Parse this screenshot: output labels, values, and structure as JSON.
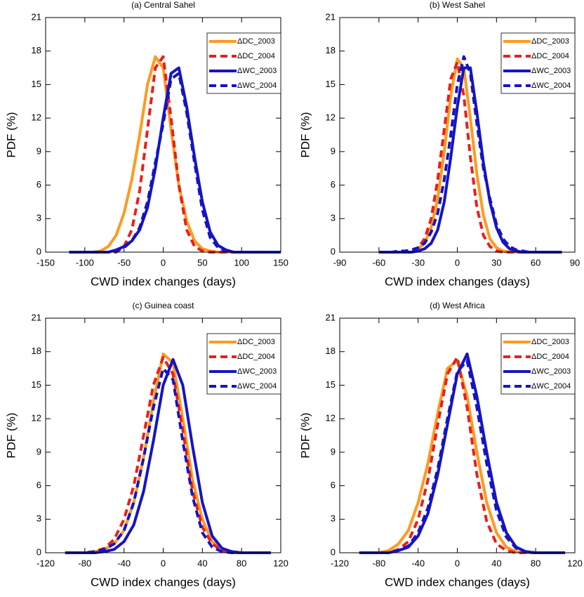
{
  "chart_data": [
    {
      "type": "line",
      "title": "(a) Central Sahel",
      "xlabel": "CWD index changes (days)",
      "ylabel": "PDF (%)",
      "x": [
        -120,
        -110,
        -100,
        -90,
        -80,
        -70,
        -60,
        -50,
        -40,
        -30,
        -20,
        -10,
        0,
        10,
        20,
        30,
        40,
        50,
        60,
        70,
        80,
        90,
        100,
        110,
        120,
        130,
        140,
        150
      ],
      "series": [
        {
          "name": "ΔDC_2003",
          "color": "#ff9a1f",
          "dashed": false,
          "values": [
            0,
            0,
            0,
            0,
            0.1,
            0.5,
            1.5,
            3.5,
            6.5,
            10.5,
            15,
            17.5,
            16.5,
            11,
            6,
            2.8,
            1,
            0.3,
            0.1,
            0,
            0,
            0,
            0,
            0,
            0,
            0,
            0,
            0
          ]
        },
        {
          "name": "ΔDC_2004",
          "color": "#e8201c",
          "dashed": true,
          "values": [
            0,
            0,
            0,
            0,
            0,
            0,
            0,
            0.5,
            2,
            5.5,
            11,
            16.5,
            17.5,
            12,
            6,
            2,
            0.5,
            0.1,
            0,
            0,
            0,
            0,
            0,
            0,
            0,
            0,
            0,
            0
          ]
        },
        {
          "name": "ΔWC_2003",
          "color": "#1414c4",
          "dashed": false,
          "values": [
            0,
            0,
            0,
            0,
            0,
            0,
            0.2,
            0.5,
            1,
            2,
            4,
            7.5,
            12,
            16,
            16.5,
            13,
            8.5,
            4.5,
            1.8,
            0.6,
            0.2,
            0,
            0,
            0,
            0,
            0,
            0,
            0
          ]
        },
        {
          "name": "ΔWC_2004",
          "color": "#1414c4",
          "dashed": true,
          "values": [
            0,
            0,
            0,
            0,
            0,
            0,
            0.1,
            0.4,
            1,
            2.2,
            4.5,
            8,
            11.5,
            15.5,
            16,
            12.5,
            8,
            3.8,
            1.3,
            0.4,
            0.1,
            0,
            0,
            0,
            0,
            0,
            0,
            0
          ]
        }
      ],
      "xlim": [
        -150,
        150
      ],
      "xticks": [
        -150,
        -100,
        -50,
        0,
        50,
        100,
        150
      ],
      "ylim": [
        0,
        21
      ],
      "yticks": [
        0,
        3,
        6,
        9,
        12,
        15,
        18,
        21
      ],
      "legend": "upper right"
    },
    {
      "type": "line",
      "title": "(b) West Sahel",
      "xlabel": "CWD index changes (days)",
      "ylabel": "PDF (%)",
      "x": [
        -60,
        -55,
        -50,
        -45,
        -40,
        -35,
        -30,
        -25,
        -20,
        -15,
        -10,
        -5,
        0,
        5,
        10,
        15,
        20,
        25,
        30,
        35,
        40,
        45,
        50,
        55,
        60,
        65,
        70,
        75,
        80
      ],
      "series": [
        {
          "name": "ΔDC_2003",
          "color": "#ff9a1f",
          "dashed": false,
          "values": [
            0,
            0,
            0,
            0,
            0,
            0,
            0.3,
            0.8,
            2.2,
            4.8,
            9,
            14,
            17.3,
            16.5,
            12,
            7,
            3.3,
            1.2,
            0.4,
            0.1,
            0,
            0,
            0,
            0,
            0,
            0,
            0,
            0,
            0
          ]
        },
        {
          "name": "ΔDC_2004",
          "color": "#e8201c",
          "dashed": true,
          "values": [
            0,
            0,
            0,
            0,
            0,
            0,
            0.4,
            1.2,
            3,
            6.5,
            11,
            15.5,
            17,
            14,
            8.5,
            4,
            1.5,
            0.5,
            0.1,
            0,
            0,
            0,
            0,
            0,
            0,
            0,
            0,
            0,
            0
          ]
        },
        {
          "name": "ΔWC_2003",
          "color": "#1414c4",
          "dashed": false,
          "values": [
            0,
            0,
            0,
            0,
            0,
            0,
            0.1,
            0.3,
            0.8,
            2,
            4.5,
            8.5,
            13,
            16.5,
            16.5,
            12.5,
            8,
            4.5,
            2.2,
            0.9,
            0.3,
            0.1,
            0,
            0,
            0,
            0,
            0,
            0,
            0
          ]
        },
        {
          "name": "ΔWC_2004",
          "color": "#1414c4",
          "dashed": true,
          "values": [
            0,
            0,
            0,
            0.1,
            0.1,
            0.2,
            0.4,
            0.8,
            1.8,
            3.5,
            6.5,
            10.5,
            15,
            17.5,
            16,
            11.5,
            7.5,
            4.8,
            2.5,
            1.2,
            0.5,
            0.2,
            0.1,
            0,
            0,
            0,
            0,
            0,
            0
          ]
        }
      ],
      "xlim": [
        -90,
        90
      ],
      "xticks": [
        -90,
        -60,
        -30,
        0,
        30,
        60,
        90
      ],
      "ylim": [
        0,
        21
      ],
      "yticks": [
        0,
        3,
        6,
        9,
        12,
        15,
        18,
        21
      ],
      "legend": "upper right"
    },
    {
      "type": "line",
      "title": "(c) Guinea coast",
      "xlabel": "CWD index changes (days)",
      "ylabel": "PDF (%)",
      "x": [
        -100,
        -90,
        -80,
        -70,
        -60,
        -50,
        -40,
        -30,
        -20,
        -10,
        0,
        10,
        20,
        30,
        40,
        50,
        60,
        70,
        80,
        90,
        100,
        110
      ],
      "series": [
        {
          "name": "ΔDC_2003",
          "color": "#ff9a1f",
          "dashed": false,
          "values": [
            0,
            0,
            0,
            0.1,
            0.3,
            0.8,
            2,
            4.5,
            8.5,
            13.5,
            17.8,
            17,
            12,
            6.5,
            3,
            1,
            0.3,
            0.1,
            0,
            0,
            0,
            0
          ]
        },
        {
          "name": "ΔDC_2004",
          "color": "#e8201c",
          "dashed": true,
          "values": [
            0,
            0,
            0,
            0.1,
            0.4,
            1.2,
            3,
            6,
            10.5,
            15,
            17.5,
            16,
            11,
            5.5,
            2.3,
            0.8,
            0.2,
            0,
            0,
            0,
            0,
            0
          ]
        },
        {
          "name": "ΔWC_2003",
          "color": "#1414c4",
          "dashed": false,
          "values": [
            0,
            0,
            0,
            0,
            0.1,
            0.3,
            1,
            2.5,
            5.5,
            10,
            15,
            17.3,
            15,
            9.5,
            4.5,
            1.5,
            0.4,
            0.1,
            0,
            0,
            0,
            0
          ]
        },
        {
          "name": "ΔWC_2004",
          "color": "#1414c4",
          "dashed": true,
          "values": [
            0,
            0,
            0,
            0.1,
            0.3,
            0.8,
            2,
            4.5,
            8.5,
            13,
            16.5,
            15.5,
            10,
            5,
            1.8,
            0.5,
            0.1,
            0,
            0,
            0,
            0,
            0
          ]
        }
      ],
      "xlim": [
        -120,
        120
      ],
      "xticks": [
        -120,
        -80,
        -40,
        0,
        40,
        80,
        120
      ],
      "ylim": [
        0,
        21
      ],
      "yticks": [
        0,
        3,
        6,
        9,
        12,
        15,
        18,
        21
      ],
      "legend": "upper right"
    },
    {
      "type": "line",
      "title": "(d) West Africa",
      "xlabel": "CWD index changes (days)",
      "ylabel": "PDF (%)",
      "x": [
        -100,
        -90,
        -80,
        -70,
        -60,
        -50,
        -40,
        -30,
        -20,
        -10,
        0,
        10,
        20,
        30,
        40,
        50,
        60,
        70,
        80,
        90,
        100,
        110
      ],
      "series": [
        {
          "name": "ΔDC_2003",
          "color": "#ff9a1f",
          "dashed": false,
          "values": [
            0,
            0,
            0,
            0.2,
            0.8,
            2,
            4.5,
            8,
            12.5,
            16.5,
            17.2,
            14,
            9,
            4.5,
            1.8,
            0.5,
            0.1,
            0,
            0,
            0,
            0,
            0
          ]
        },
        {
          "name": "ΔDC_2004",
          "color": "#e8201c",
          "dashed": true,
          "values": [
            0,
            0,
            0,
            0,
            0.3,
            1,
            3,
            6.5,
            11.5,
            16,
            17.5,
            13,
            7,
            2.8,
            0.8,
            0.2,
            0,
            0,
            0,
            0,
            0,
            0
          ]
        },
        {
          "name": "ΔWC_2003",
          "color": "#1414c4",
          "dashed": false,
          "values": [
            0,
            0,
            0,
            0,
            0.2,
            0.5,
            1.5,
            3.5,
            7,
            11.5,
            16,
            17.8,
            14,
            9,
            4.5,
            1.8,
            0.5,
            0.1,
            0,
            0,
            0,
            0
          ]
        },
        {
          "name": "ΔWC_2004",
          "color": "#1414c4",
          "dashed": true,
          "values": [
            0,
            0,
            0,
            0,
            0.2,
            0.6,
            1.8,
            4,
            7.5,
            12,
            16.2,
            17.2,
            13,
            8,
            3.8,
            1.4,
            0.4,
            0.1,
            0,
            0,
            0,
            0
          ]
        }
      ],
      "xlim": [
        -120,
        120
      ],
      "xticks": [
        -120,
        -80,
        -40,
        0,
        40,
        80,
        120
      ],
      "ylim": [
        0,
        21
      ],
      "yticks": [
        0,
        3,
        6,
        9,
        12,
        15,
        18,
        21
      ],
      "legend": "upper right"
    }
  ]
}
